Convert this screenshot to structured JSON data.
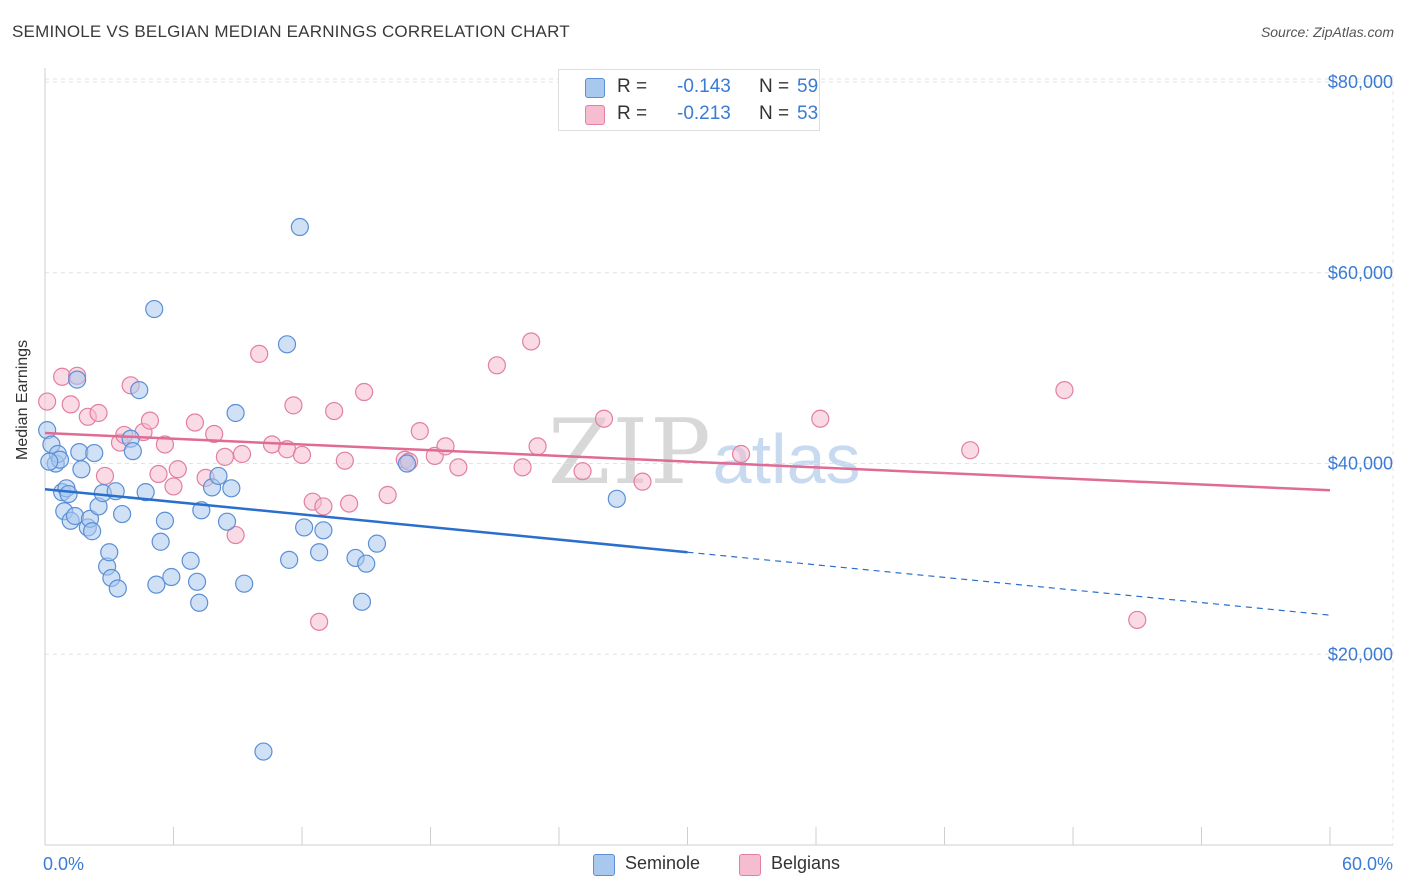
{
  "title": "SEMINOLE VS BELGIAN MEDIAN EARNINGS CORRELATION CHART",
  "source": "Source: ZipAtlas.com",
  "watermark": {
    "zip": "ZIP",
    "atlas": "atlas"
  },
  "colors": {
    "seminole_fill": "#a9c8ee",
    "seminole_stroke": "#5b8fd6",
    "seminole_line": "#2a6fcc",
    "belgians_fill": "#f6bcd0",
    "belgians_stroke": "#e27fa2",
    "belgians_line": "#e06b94",
    "axis_text": "#3a7bd5",
    "grid": "#e2e2e2"
  },
  "stats": [
    {
      "label": "R =",
      "r": "-0.143",
      "n_label": "N =",
      "n": "59"
    },
    {
      "label": "R =",
      "r": "-0.213",
      "n_label": "N =",
      "n": "53"
    }
  ],
  "legend": [
    {
      "label": "Seminole"
    },
    {
      "label": "Belgians"
    }
  ],
  "chart_data": {
    "type": "scatter",
    "title": "SEMINOLE VS BELGIAN MEDIAN EARNINGS CORRELATION CHART",
    "xlabel": "",
    "ylabel": "Median Earnings",
    "xlim": [
      0,
      60
    ],
    "ylim": [
      0,
      82000
    ],
    "x_tick_labels": [
      "0.0%",
      "60.0%"
    ],
    "y_ticks": [
      20000,
      40000,
      60000,
      80000
    ],
    "y_tick_labels": [
      "$20,000",
      "$40,000",
      "$60,000",
      "$80,000"
    ],
    "grid": true,
    "series": [
      {
        "name": "Seminole",
        "points": [
          [
            0.1,
            43500
          ],
          [
            0.3,
            42000
          ],
          [
            0.5,
            40000
          ],
          [
            0.6,
            41000
          ],
          [
            0.7,
            40400
          ],
          [
            0.8,
            37000
          ],
          [
            0.9,
            35000
          ],
          [
            1.0,
            37400
          ],
          [
            1.1,
            36800
          ],
          [
            1.2,
            34000
          ],
          [
            1.4,
            34500
          ],
          [
            1.5,
            48800
          ],
          [
            1.6,
            41200
          ],
          [
            1.7,
            39400
          ],
          [
            2.0,
            33300
          ],
          [
            2.1,
            34200
          ],
          [
            2.2,
            32900
          ],
          [
            2.3,
            41100
          ],
          [
            2.5,
            35500
          ],
          [
            2.7,
            36900
          ],
          [
            2.9,
            29200
          ],
          [
            3.0,
            30700
          ],
          [
            3.1,
            28000
          ],
          [
            3.3,
            37100
          ],
          [
            3.4,
            26900
          ],
          [
            3.6,
            34700
          ],
          [
            4.0,
            42600
          ],
          [
            4.1,
            41300
          ],
          [
            4.4,
            47700
          ],
          [
            4.7,
            37000
          ],
          [
            5.1,
            56200
          ],
          [
            5.2,
            27300
          ],
          [
            5.4,
            31800
          ],
          [
            5.6,
            34000
          ],
          [
            5.9,
            28100
          ],
          [
            6.8,
            29800
          ],
          [
            7.1,
            27600
          ],
          [
            7.2,
            25400
          ],
          [
            7.3,
            35100
          ],
          [
            7.8,
            37500
          ],
          [
            8.1,
            38700
          ],
          [
            8.5,
            33900
          ],
          [
            8.7,
            37400
          ],
          [
            8.9,
            45300
          ],
          [
            9.3,
            27400
          ],
          [
            10.2,
            9800
          ],
          [
            11.3,
            52500
          ],
          [
            11.4,
            29900
          ],
          [
            11.9,
            64800
          ],
          [
            12.1,
            33300
          ],
          [
            12.8,
            30700
          ],
          [
            13.0,
            33000
          ],
          [
            14.5,
            30100
          ],
          [
            14.8,
            25500
          ],
          [
            15.0,
            29500
          ],
          [
            15.5,
            31600
          ],
          [
            16.9,
            40000
          ],
          [
            26.7,
            36300
          ],
          [
            0.2,
            40200
          ]
        ]
      },
      {
        "name": "Belgians",
        "points": [
          [
            0.1,
            46500
          ],
          [
            0.8,
            49100
          ],
          [
            1.2,
            46200
          ],
          [
            1.5,
            49200
          ],
          [
            2.0,
            44900
          ],
          [
            2.5,
            45300
          ],
          [
            2.8,
            38700
          ],
          [
            3.5,
            42200
          ],
          [
            3.7,
            43000
          ],
          [
            4.0,
            48200
          ],
          [
            4.6,
            43300
          ],
          [
            4.9,
            44500
          ],
          [
            5.3,
            38900
          ],
          [
            5.6,
            42000
          ],
          [
            6.0,
            37600
          ],
          [
            6.2,
            39400
          ],
          [
            7.0,
            44300
          ],
          [
            7.5,
            38500
          ],
          [
            7.9,
            43100
          ],
          [
            8.4,
            40700
          ],
          [
            8.9,
            32500
          ],
          [
            9.2,
            41000
          ],
          [
            10.0,
            51500
          ],
          [
            10.6,
            42000
          ],
          [
            11.3,
            41500
          ],
          [
            11.6,
            46100
          ],
          [
            12.0,
            40900
          ],
          [
            12.5,
            36000
          ],
          [
            13.0,
            35500
          ],
          [
            13.5,
            45500
          ],
          [
            14.0,
            40300
          ],
          [
            14.2,
            35800
          ],
          [
            14.9,
            47500
          ],
          [
            16.0,
            36700
          ],
          [
            16.8,
            40400
          ],
          [
            17.5,
            43400
          ],
          [
            18.2,
            40800
          ],
          [
            18.7,
            41800
          ],
          [
            19.3,
            39600
          ],
          [
            21.1,
            50300
          ],
          [
            22.3,
            39600
          ],
          [
            22.7,
            52800
          ],
          [
            23.0,
            41800
          ],
          [
            25.1,
            39200
          ],
          [
            26.1,
            44700
          ],
          [
            27.9,
            38100
          ],
          [
            32.5,
            41000
          ],
          [
            36.2,
            44700
          ],
          [
            43.2,
            41400
          ],
          [
            47.6,
            47700
          ],
          [
            51.0,
            23600
          ],
          [
            12.8,
            23400
          ],
          [
            17.0,
            40200
          ]
        ]
      }
    ],
    "trend_lines": [
      {
        "name": "Seminole",
        "x": [
          0,
          30,
          60
        ],
        "y": [
          37300,
          30700,
          24100
        ],
        "solid_until_x": 30
      },
      {
        "name": "Belgians",
        "x": [
          0,
          60
        ],
        "y": [
          43200,
          37200
        ]
      }
    ]
  }
}
